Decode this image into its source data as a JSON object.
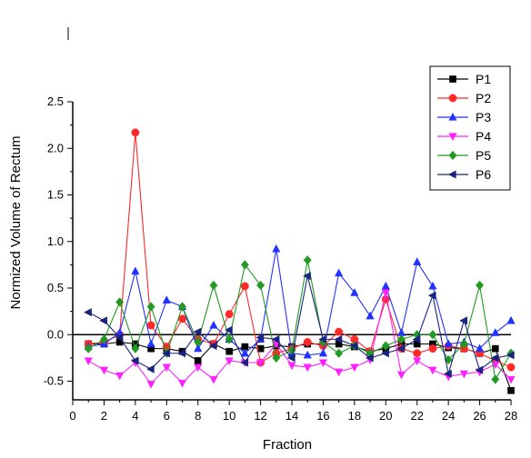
{
  "chart_data": {
    "type": "line",
    "title": "",
    "xlabel": "Fraction",
    "ylabel": "Normized Volume of Rectum",
    "xlim": [
      0,
      28
    ],
    "ylim": [
      -0.7,
      2.5
    ],
    "xticks": [
      0,
      2,
      4,
      6,
      8,
      10,
      12,
      14,
      16,
      18,
      20,
      22,
      24,
      26,
      28
    ],
    "yticks": [
      -0.5,
      0.0,
      0.5,
      1.0,
      1.5,
      2.0,
      2.5
    ],
    "ytick_labels": [
      "-0.5",
      "0.0",
      "0.5",
      "1.0",
      "1.5",
      "2.0",
      "2.5"
    ],
    "reference_line_y": 0,
    "grid": false,
    "legend_position": "top-right",
    "x": [
      1,
      2,
      3,
      4,
      5,
      6,
      7,
      8,
      9,
      10,
      11,
      12,
      13,
      14,
      15,
      16,
      17,
      18,
      19,
      20,
      21,
      22,
      23,
      24,
      25,
      26,
      27,
      28
    ],
    "series": [
      {
        "name": "P1",
        "color": "#000000",
        "marker": "square",
        "values": [
          -0.1,
          -0.1,
          -0.08,
          -0.1,
          -0.15,
          -0.15,
          -0.18,
          -0.28,
          -0.1,
          -0.18,
          -0.13,
          -0.15,
          -0.12,
          -0.13,
          -0.1,
          -0.1,
          -0.1,
          -0.13,
          -0.18,
          -0.15,
          -0.1,
          -0.1,
          -0.1,
          -0.14,
          -0.15,
          -0.2,
          -0.15,
          -0.6
        ]
      },
      {
        "name": "P2",
        "color": "#ff2a2a",
        "marker": "circle",
        "values": [
          -0.1,
          -0.08,
          0.0,
          2.17,
          0.1,
          -0.13,
          0.17,
          -0.05,
          -0.1,
          0.22,
          0.52,
          -0.3,
          -0.2,
          -0.15,
          -0.08,
          -0.12,
          0.03,
          -0.05,
          -0.18,
          0.38,
          -0.15,
          -0.2,
          -0.15,
          -0.12,
          -0.15,
          -0.2,
          -0.28,
          -0.35
        ]
      },
      {
        "name": "P3",
        "color": "#2233ff",
        "marker": "triangle-up",
        "values": [
          -0.13,
          -0.1,
          0.02,
          0.68,
          -0.1,
          0.37,
          0.3,
          -0.15,
          0.1,
          -0.05,
          -0.2,
          -0.05,
          0.92,
          -0.2,
          -0.22,
          -0.2,
          0.66,
          0.45,
          0.2,
          0.52,
          0.02,
          0.78,
          0.52,
          -0.1,
          -0.08,
          -0.15,
          0.02,
          0.15
        ]
      },
      {
        "name": "P4",
        "color": "#ff22ff",
        "marker": "triangle-down",
        "values": [
          -0.28,
          -0.38,
          -0.44,
          -0.3,
          -0.53,
          -0.35,
          -0.52,
          -0.35,
          -0.48,
          -0.28,
          -0.3,
          -0.3,
          -0.1,
          -0.33,
          -0.35,
          -0.3,
          -0.4,
          -0.35,
          -0.27,
          0.45,
          -0.43,
          -0.28,
          -0.38,
          -0.45,
          -0.42,
          -0.4,
          -0.32,
          -0.48
        ]
      },
      {
        "name": "P5",
        "color": "#229922",
        "marker": "diamond",
        "values": [
          -0.15,
          -0.05,
          0.35,
          -0.15,
          0.3,
          -0.2,
          0.3,
          -0.08,
          0.53,
          -0.05,
          0.75,
          0.53,
          -0.25,
          -0.17,
          0.8,
          -0.08,
          -0.2,
          -0.12,
          -0.2,
          -0.12,
          -0.05,
          0.0,
          0.0,
          -0.27,
          -0.1,
          0.53,
          -0.48,
          -0.2
        ]
      },
      {
        "name": "P6",
        "color": "#1a237e",
        "marker": "triangle-left",
        "values": [
          0.24,
          0.15,
          -0.03,
          -0.28,
          -0.37,
          -0.2,
          -0.2,
          0.03,
          -0.12,
          0.05,
          -0.3,
          -0.03,
          -0.05,
          -0.25,
          0.63,
          -0.05,
          -0.05,
          -0.12,
          -0.25,
          -0.2,
          -0.15,
          -0.05,
          0.42,
          -0.42,
          0.15,
          -0.38,
          -0.25,
          -0.22
        ]
      }
    ]
  }
}
